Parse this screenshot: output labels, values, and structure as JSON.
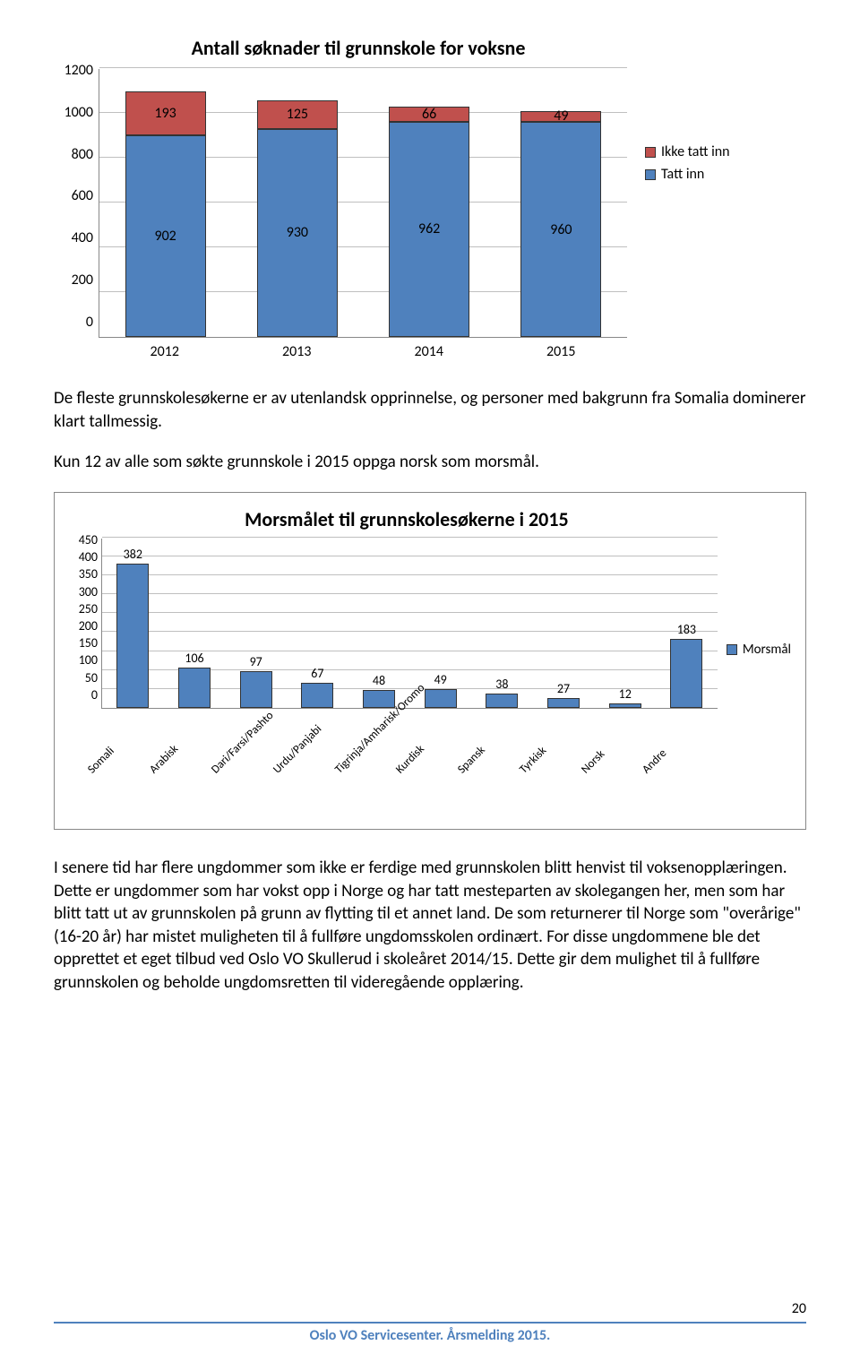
{
  "colors": {
    "blue": "#4f81bd",
    "red": "#c0504d",
    "grid": "#bfbfbf",
    "text_on_blue": "#000000",
    "text_on_red": "#000000"
  },
  "chart1": {
    "title": "Antall søknader til grunnskole for voksne",
    "ymax": 1200,
    "ytick_step": 200,
    "yticks": [
      0,
      200,
      400,
      600,
      800,
      1000,
      1200
    ],
    "categories": [
      "2012",
      "2013",
      "2014",
      "2015"
    ],
    "series": {
      "tatt_inn": {
        "label": "Tatt inn",
        "color": "#4f81bd",
        "values": [
          902,
          930,
          962,
          960
        ]
      },
      "ikke_tatt": {
        "label": "Ikke tatt inn",
        "color": "#c0504d",
        "values": [
          193,
          125,
          66,
          49
        ]
      }
    }
  },
  "para1": "De fleste grunnskolesøkerne er av utenlandsk opprinnelse, og personer med bakgrunn fra Somalia dominerer klart tallmessig.",
  "para2": "Kun 12 av alle som søkte grunnskole i 2015 oppga norsk som morsmål.",
  "chart2": {
    "title": "Morsmålet til grunnskolesøkerne i 2015",
    "ymax": 450,
    "ytick_step": 50,
    "yticks": [
      0,
      50,
      100,
      150,
      200,
      250,
      300,
      350,
      400,
      450
    ],
    "bar_color": "#4f81bd",
    "legend_label": "Morsmål",
    "items": [
      {
        "label": "Somali",
        "value": 382
      },
      {
        "label": "Arabisk",
        "value": 106
      },
      {
        "label": "Dari/Farsi/Pashto",
        "value": 97
      },
      {
        "label": "Urdu/Panjabi",
        "value": 67
      },
      {
        "label": "Tigrinja/Amharisk/Oromo",
        "value": 48
      },
      {
        "label": "Kurdisk",
        "value": 49
      },
      {
        "label": "Spansk",
        "value": 38
      },
      {
        "label": "Tyrkisk",
        "value": 27
      },
      {
        "label": "Norsk",
        "value": 12
      },
      {
        "label": "Andre",
        "value": 183
      }
    ]
  },
  "para3": "I senere tid har flere ungdommer som ikke er ferdige med grunnskolen blitt henvist til voksenopplæringen. Dette er ungdommer som har vokst opp i Norge og har tatt mesteparten av skolegangen her, men som har blitt tatt ut av grunnskolen på grunn av flytting til et annet land. De som returnerer til Norge som \"overårige\" (16-20 år) har mistet muligheten til å fullføre ungdomsskolen ordinært. For disse ungdommene ble det opprettet et eget tilbud ved Oslo VO Skullerud i skoleåret 2014/15. Dette gir dem mulighet til å fullføre grunnskolen og beholde ungdomsretten til videregående opplæring.",
  "footer": "Oslo VO Servicesenter. Årsmelding 2015.",
  "page_number": "20"
}
